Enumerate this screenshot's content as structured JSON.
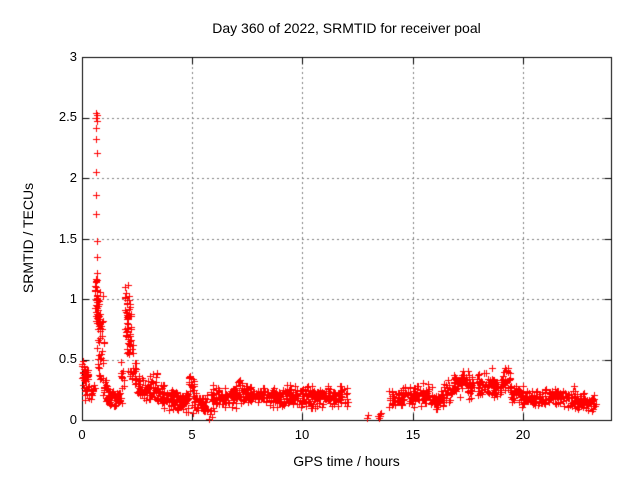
{
  "chart_data": {
    "type": "scatter",
    "title": "Day 360 of 2022, SRMTID for receiver poal",
    "xlabel": "GPS time / hours",
    "ylabel": "SRMTID / TECUs",
    "xlim": [
      0,
      24
    ],
    "ylim": [
      0,
      3
    ],
    "xticks": [
      0,
      5,
      10,
      15,
      20
    ],
    "yticks": [
      0,
      0.5,
      1,
      1.5,
      2,
      2.5,
      3
    ],
    "xtick_labels": [
      "0",
      "5",
      "10",
      "15",
      "20"
    ],
    "ytick_labels": [
      "0",
      "0.5",
      "1",
      "1.5",
      "2",
      "2.5",
      "3"
    ],
    "grid": true,
    "legend": "none",
    "background": "#ffffff",
    "frame_color": "#000000",
    "grid_color": "#808080",
    "marker": {
      "shape": "plus",
      "size": 7,
      "color": "#ff0000"
    },
    "outlier_points": [
      [
        0.64,
        2.54
      ],
      [
        0.66,
        2.52
      ],
      [
        0.64,
        2.5
      ],
      [
        0.67,
        2.47
      ],
      [
        0.65,
        2.41
      ],
      [
        0.64,
        2.32
      ],
      [
        0.66,
        2.21
      ],
      [
        0.64,
        2.05
      ],
      [
        0.65,
        1.86
      ],
      [
        0.64,
        1.7
      ],
      [
        0.66,
        1.48
      ],
      [
        0.67,
        1.35
      ],
      [
        12.95,
        0.02
      ],
      [
        12.98,
        0.04
      ],
      [
        13.42,
        0.03
      ],
      [
        13.46,
        0.02
      ],
      [
        13.5,
        0.05
      ],
      [
        13.53,
        0.03
      ],
      [
        13.56,
        0.06
      ]
    ],
    "cluster_segments": [
      [
        0.0,
        0.1,
        10,
        0.32,
        0.52
      ],
      [
        0.05,
        0.3,
        20,
        0.26,
        0.46
      ],
      [
        0.1,
        0.45,
        15,
        0.14,
        0.3
      ],
      [
        0.45,
        0.58,
        8,
        0.18,
        0.35
      ],
      [
        0.6,
        0.7,
        14,
        0.9,
        1.28
      ],
      [
        0.63,
        0.82,
        25,
        0.7,
        1.2
      ],
      [
        0.68,
        0.95,
        22,
        0.55,
        1.05
      ],
      [
        0.72,
        1.0,
        18,
        0.3,
        0.7
      ],
      [
        0.95,
        1.15,
        15,
        0.15,
        0.38
      ],
      [
        1.1,
        1.45,
        25,
        0.1,
        0.3
      ],
      [
        1.4,
        1.8,
        28,
        0.08,
        0.28
      ],
      [
        1.75,
        1.95,
        10,
        0.2,
        0.55
      ],
      [
        1.95,
        2.1,
        20,
        0.5,
        1.18
      ],
      [
        2.0,
        2.25,
        25,
        0.45,
        1.1
      ],
      [
        2.05,
        2.3,
        15,
        0.3,
        0.8
      ],
      [
        2.25,
        2.45,
        12,
        0.25,
        0.55
      ],
      [
        2.4,
        2.65,
        14,
        0.18,
        0.42
      ],
      [
        2.6,
        3.1,
        35,
        0.14,
        0.38
      ],
      [
        3.05,
        3.4,
        22,
        0.15,
        0.43
      ],
      [
        3.35,
        3.8,
        30,
        0.1,
        0.32
      ],
      [
        3.75,
        4.3,
        38,
        0.08,
        0.28
      ],
      [
        4.25,
        4.85,
        40,
        0.06,
        0.25
      ],
      [
        4.8,
        5.1,
        20,
        0.12,
        0.42
      ],
      [
        5.05,
        5.7,
        42,
        0.05,
        0.24
      ],
      [
        5.72,
        5.88,
        8,
        0.0,
        0.12
      ],
      [
        5.85,
        6.4,
        35,
        0.06,
        0.3
      ],
      [
        6.35,
        7.0,
        45,
        0.08,
        0.3
      ],
      [
        6.95,
        7.5,
        38,
        0.1,
        0.34
      ],
      [
        7.45,
        8.4,
        60,
        0.12,
        0.3
      ],
      [
        8.35,
        9.2,
        55,
        0.1,
        0.28
      ],
      [
        9.15,
        10.0,
        55,
        0.1,
        0.3
      ],
      [
        9.95,
        10.45,
        32,
        0.08,
        0.33
      ],
      [
        10.4,
        11.2,
        50,
        0.08,
        0.28
      ],
      [
        11.15,
        11.75,
        38,
        0.1,
        0.3
      ],
      [
        11.7,
        12.05,
        20,
        0.1,
        0.28
      ],
      [
        13.9,
        14.5,
        35,
        0.08,
        0.26
      ],
      [
        14.45,
        15.1,
        42,
        0.1,
        0.3
      ],
      [
        15.05,
        15.7,
        40,
        0.1,
        0.32
      ],
      [
        15.65,
        16.4,
        45,
        0.08,
        0.28
      ],
      [
        16.35,
        16.9,
        32,
        0.12,
        0.34
      ],
      [
        16.85,
        17.25,
        25,
        0.15,
        0.44
      ],
      [
        17.2,
        17.55,
        20,
        0.18,
        0.52
      ],
      [
        17.5,
        18.1,
        35,
        0.14,
        0.4
      ],
      [
        18.05,
        18.7,
        38,
        0.15,
        0.44
      ],
      [
        18.65,
        19.1,
        26,
        0.14,
        0.4
      ],
      [
        19.05,
        19.45,
        22,
        0.18,
        0.47
      ],
      [
        19.4,
        20.0,
        35,
        0.1,
        0.34
      ],
      [
        19.95,
        20.8,
        48,
        0.09,
        0.28
      ],
      [
        20.75,
        21.6,
        50,
        0.1,
        0.29
      ],
      [
        21.55,
        22.4,
        48,
        0.09,
        0.28
      ],
      [
        22.35,
        22.9,
        32,
        0.08,
        0.24
      ],
      [
        22.85,
        23.35,
        28,
        0.07,
        0.22
      ]
    ]
  }
}
